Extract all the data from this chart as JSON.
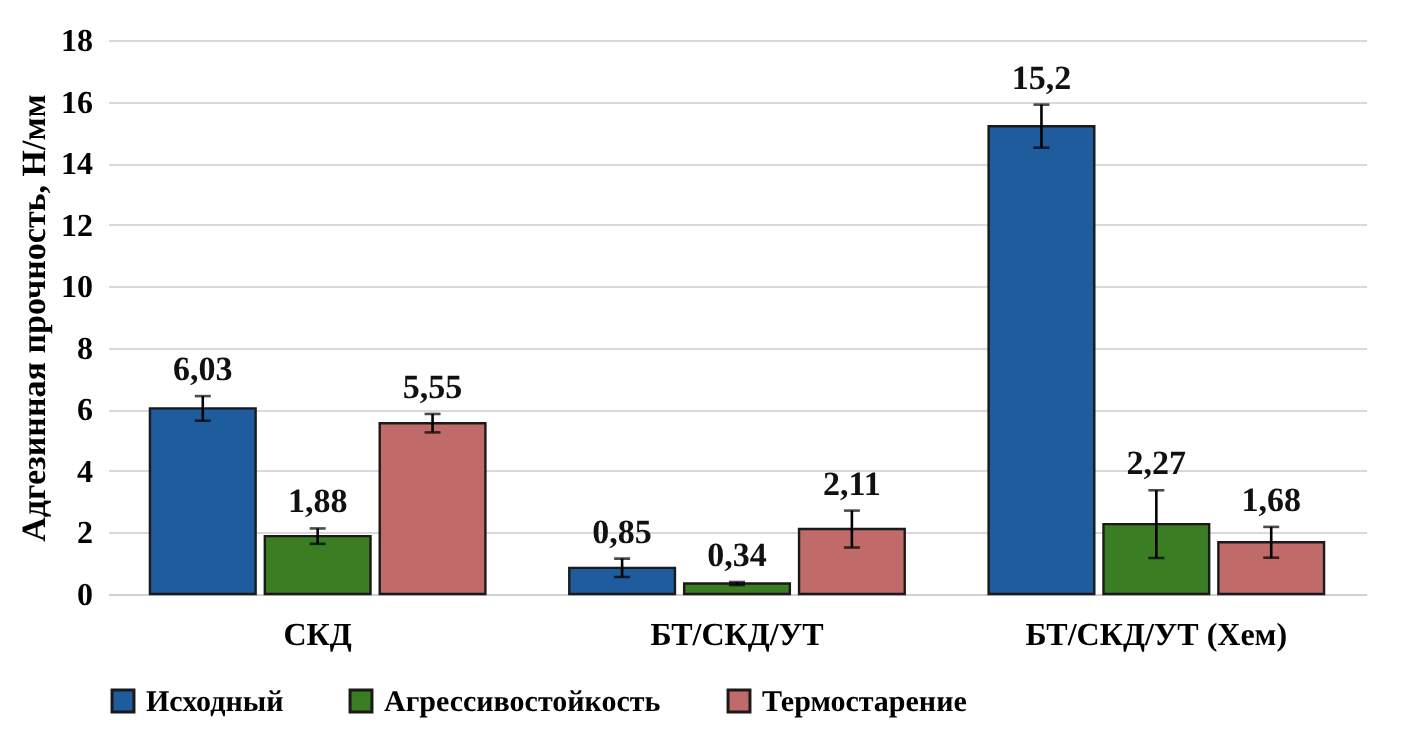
{
  "chart_data": {
    "type": "bar",
    "ylabel": "Адгезинная прочность, Н/мм",
    "categories": [
      "СКД",
      "БТ/СКД/УТ",
      "БТ/СКД/УТ  (Хем)"
    ],
    "series": [
      {
        "name": "Исходный",
        "color": "#1f5c9e",
        "values": [
          6.03,
          0.85,
          15.2
        ],
        "errors": [
          0.4,
          0.3,
          0.7
        ],
        "value_labels": [
          "6,03",
          "0,85",
          "15,2"
        ]
      },
      {
        "name": "Агрессивостойкость",
        "color": "#3a7d22",
        "values": [
          1.88,
          0.34,
          2.27
        ],
        "errors": [
          0.25,
          0.05,
          1.1
        ],
        "value_labels": [
          "1,88",
          "0,34",
          "2,27"
        ]
      },
      {
        "name": "Термостарение",
        "color": "#c06a6a",
        "values": [
          5.55,
          2.11,
          1.68
        ],
        "errors": [
          0.3,
          0.6,
          0.5
        ],
        "value_labels": [
          "5,55",
          "2,11",
          "1,68"
        ]
      }
    ],
    "ylim": [
      0,
      18
    ],
    "yticks": [
      0,
      2,
      4,
      6,
      8,
      10,
      12,
      14,
      16,
      18
    ],
    "grid": "y",
    "legend": "bottom"
  }
}
